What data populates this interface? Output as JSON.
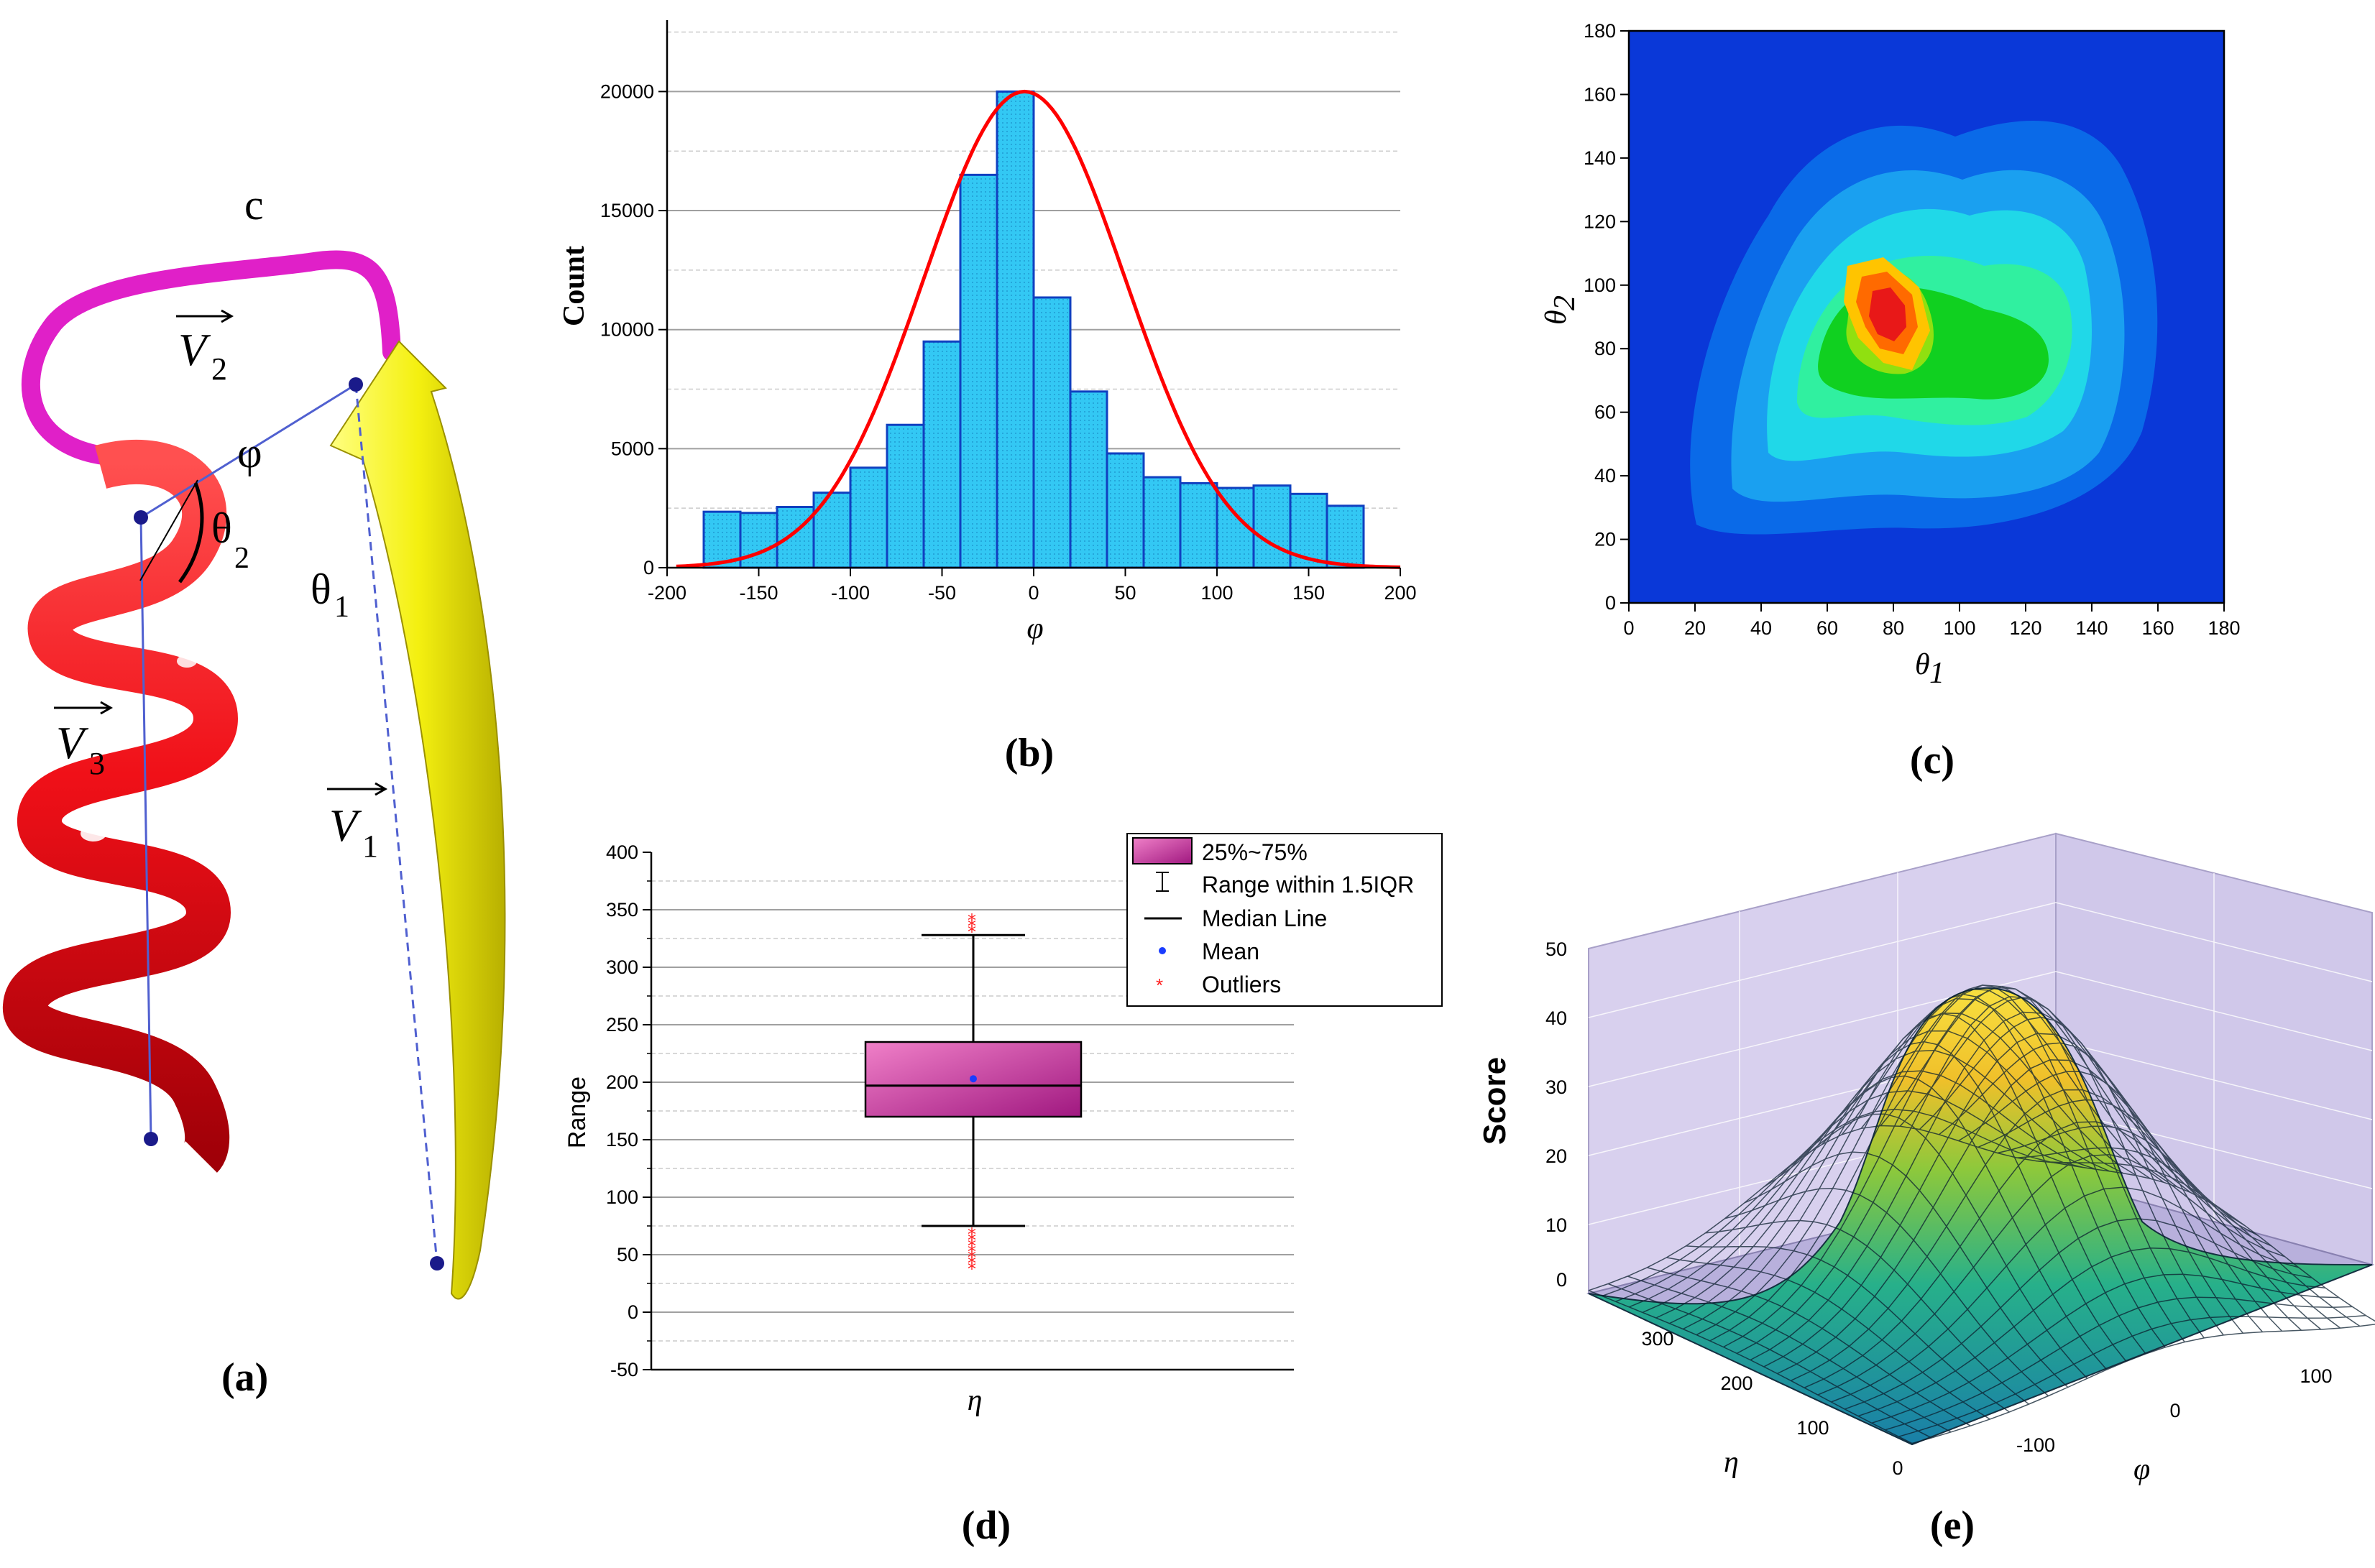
{
  "colors": {
    "helix": "#e8101a",
    "loop": "#e020c8",
    "strand": "#f0f010",
    "bar_fill": "#33c8f4",
    "bar_edge": "#1040c0",
    "gauss": "#ff0000",
    "box_fill": "#e060b0",
    "mean": "#1a3cff",
    "outlier": "#ff2020",
    "surface_wall": "#d8d0ee"
  },
  "panel_a": {
    "label": "(a)",
    "c_label": "c",
    "v1": "V",
    "v1_sub": "1",
    "v2": "V",
    "v2_sub": "2",
    "v3": "V",
    "v3_sub": "3",
    "phi": "φ",
    "theta1": "θ",
    "theta1_sub": "1",
    "theta2": "θ",
    "theta2_sub": "2"
  },
  "panel_b": {
    "label": "(b)",
    "ylabel": "Count",
    "xlabel": "φ"
  },
  "panel_c": {
    "label": "(c)",
    "xlabel": "θ",
    "xlabel_sub": "1",
    "ylabel": "θ",
    "ylabel_sub": "2"
  },
  "panel_d": {
    "label": "(d)",
    "ylabel": "Range",
    "xlabel": "η",
    "legend": [
      "25%~75%",
      "Range within 1.5IQR",
      "Median Line",
      "Mean",
      "Outliers"
    ]
  },
  "panel_e": {
    "label": "(e)",
    "zlabel": "Score",
    "xlabel": "φ",
    "ylabel": "η"
  },
  "chart_data": [
    {
      "type": "bar",
      "panel": "b",
      "bin_centers": [
        -170,
        -150,
        -130,
        -110,
        -90,
        -70,
        -50,
        -30,
        -10,
        10,
        30,
        50,
        70,
        90,
        110,
        130,
        150,
        170
      ],
      "values": [
        2350,
        2300,
        2550,
        3150,
        4200,
        6000,
        9500,
        16500,
        20000,
        11350,
        7400,
        4800,
        3800,
        3550,
        3350,
        3450,
        3100,
        2600
      ],
      "overlay_line": {
        "type": "gaussian",
        "mean": -5,
        "sd": 55,
        "peak": 20000
      },
      "xlabel": "φ",
      "ylabel": "Count",
      "xlim": [
        -200,
        200
      ],
      "ylim": [
        0,
        23000
      ],
      "xticks": [
        -200,
        -150,
        -100,
        -50,
        0,
        50,
        100,
        150,
        200
      ],
      "yticks": [
        0,
        5000,
        10000,
        15000,
        20000
      ],
      "grid": true
    },
    {
      "type": "heatmap",
      "panel": "c",
      "xlabel": "θ1",
      "ylabel": "θ2",
      "xlim": [
        0,
        180
      ],
      "ylim": [
        0,
        180
      ],
      "xticks": [
        0,
        20,
        40,
        60,
        80,
        100,
        120,
        140,
        160,
        180
      ],
      "yticks": [
        0,
        20,
        40,
        60,
        80,
        100,
        120,
        140,
        160,
        180
      ],
      "peak": {
        "theta1": 78,
        "theta2": 92
      }
    },
    {
      "type": "box",
      "panel": "d",
      "category": "η",
      "q1": 170,
      "median": 197,
      "q3": 235,
      "mean": 203,
      "whisker_low": 75,
      "whisker_high": 328,
      "outliers_low": [
        40,
        45,
        50,
        55,
        60,
        65,
        70
      ],
      "outliers_high": [
        333,
        338,
        343
      ],
      "ylabel": "Range",
      "ylim": [
        -50,
        400
      ],
      "yticks": [
        -50,
        0,
        50,
        100,
        150,
        200,
        250,
        300,
        350,
        400
      ],
      "legend_position": "top-right"
    },
    {
      "type": "surface",
      "panel": "e",
      "xlabel": "φ",
      "ylabel": "η",
      "zlabel": "Score",
      "zticks": [
        0,
        10,
        20,
        30,
        40,
        50
      ],
      "xticks": [
        -100,
        0,
        100
      ],
      "yticks": [
        0,
        100,
        200,
        300
      ],
      "peak_score": 45
    }
  ]
}
